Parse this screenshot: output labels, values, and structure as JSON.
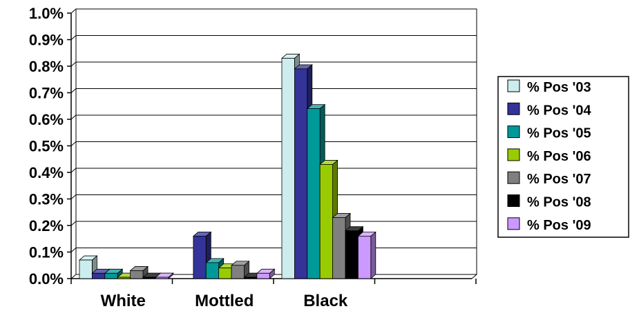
{
  "chart_data": {
    "type": "bar",
    "categories": [
      "White",
      "Mottled",
      "Black",
      ""
    ],
    "series": [
      {
        "name": "% Pos '03",
        "color": "#CCECEE",
        "values": [
          0.07,
          0.0,
          0.83,
          0.0
        ]
      },
      {
        "name": "% Pos '04",
        "color": "#333399",
        "values": [
          0.02,
          0.16,
          0.79,
          0.0
        ]
      },
      {
        "name": "% Pos '05",
        "color": "#009999",
        "values": [
          0.02,
          0.06,
          0.64,
          0.0
        ]
      },
      {
        "name": "% Pos '06",
        "color": "#99CC00",
        "values": [
          0.005,
          0.04,
          0.43,
          0.0
        ]
      },
      {
        "name": "% Pos '07",
        "color": "#808080",
        "values": [
          0.03,
          0.05,
          0.23,
          0.0
        ]
      },
      {
        "name": "% Pos '08",
        "color": "#000000",
        "values": [
          0.005,
          0.005,
          0.18,
          0.0
        ]
      },
      {
        "name": "% Pos '09",
        "color": "#CC99FF",
        "values": [
          0.005,
          0.02,
          0.16,
          0.0
        ]
      }
    ],
    "y_ticks": [
      "0.0%",
      "0.1%",
      "0.2%",
      "0.3%",
      "0.4%",
      "0.5%",
      "0.6%",
      "0.7%",
      "0.8%",
      "0.9%",
      "1.0%"
    ],
    "ylim": [
      0,
      1.0
    ],
    "grid": true,
    "three_d": true,
    "legend_position": "right"
  }
}
